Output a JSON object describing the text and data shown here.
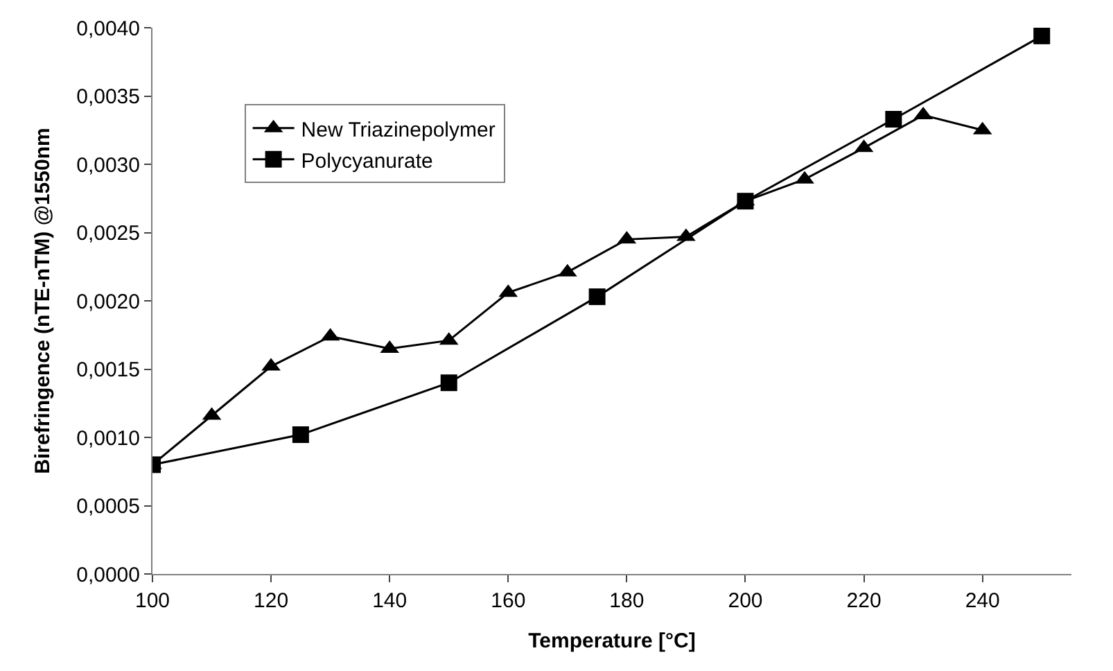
{
  "chart_data": {
    "type": "line",
    "xlabel": "Temperature [°C]",
    "ylabel": "Birefringence (nTE-nTM) @1550nm",
    "xlim": [
      100,
      255
    ],
    "xticks": [
      100,
      120,
      140,
      160,
      180,
      200,
      220,
      240
    ],
    "ylim": [
      0,
      0.004
    ],
    "yticks": [
      {
        "value": 0,
        "label": "0,0000"
      },
      {
        "value": 0.0005,
        "label": "0,0005"
      },
      {
        "value": 0.001,
        "label": "0,0010"
      },
      {
        "value": 0.0015,
        "label": "0,0015"
      },
      {
        "value": 0.002,
        "label": "0,0020"
      },
      {
        "value": 0.0025,
        "label": "0,0025"
      },
      {
        "value": 0.003,
        "label": "0,0030"
      },
      {
        "value": 0.0035,
        "label": "0,0035"
      },
      {
        "value": 0.004,
        "label": "0,0040"
      }
    ],
    "grid": false,
    "legend": "top left",
    "line_style": "solid",
    "series": [
      {
        "name": "New Triazinepolymer",
        "color": "#000000",
        "marker": "triangle",
        "x": [
          100,
          110,
          120,
          130,
          140,
          150,
          160,
          170,
          180,
          190,
          200,
          210,
          220,
          230,
          240
        ],
        "values": [
          0.0008,
          0.00116,
          0.00152,
          0.00174,
          0.00165,
          0.00171,
          0.00206,
          0.00221,
          0.00245,
          0.00247,
          0.00273,
          0.00289,
          0.00312,
          0.00336,
          0.00325
        ]
      },
      {
        "name": "Polycyanurate",
        "color": "#000000",
        "marker": "square",
        "x": [
          100,
          125,
          150,
          175,
          200,
          225,
          250
        ],
        "values": [
          0.0008,
          0.00102,
          0.0014,
          0.00203,
          0.00273,
          0.00333,
          0.00394
        ]
      }
    ]
  }
}
